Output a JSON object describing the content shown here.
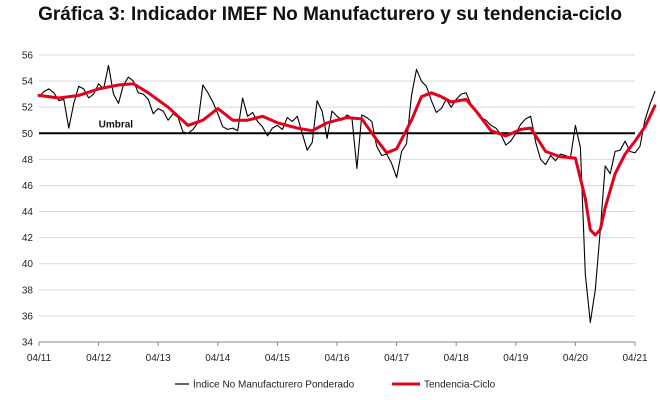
{
  "chart_data": {
    "type": "line",
    "title": "Gráfica 3: Indicador IMEF No Manufacturero y su tendencia-ciclo",
    "xlabel": "",
    "ylabel": "",
    "ylim": [
      34,
      56
    ],
    "yticks": [
      "34",
      "36",
      "38",
      "40",
      "42",
      "44",
      "46",
      "48",
      "50",
      "52",
      "54",
      "56"
    ],
    "xticks": [
      "04/11",
      "04/12",
      "04/13",
      "04/14",
      "04/15",
      "04/16",
      "04/17",
      "04/18",
      "04/19",
      "04/20",
      "04/21"
    ],
    "x_range": [
      0,
      120
    ],
    "grid": "horizontal",
    "threshold": {
      "label": "Umbral",
      "value": 50
    },
    "legend_position": "bottom",
    "series": [
      {
        "name": "Índice No Manufacturero Ponderado",
        "color": "#000000",
        "style": "thin",
        "points": [
          [
            0,
            52.8
          ],
          [
            1,
            53.2
          ],
          [
            2,
            53.4
          ],
          [
            3,
            53.1
          ],
          [
            4,
            52.5
          ],
          [
            5,
            52.6
          ],
          [
            6,
            50.4
          ],
          [
            7,
            52.3
          ],
          [
            8,
            53.6
          ],
          [
            9,
            53.4
          ],
          [
            10,
            52.7
          ],
          [
            11,
            53.0
          ],
          [
            12,
            53.8
          ],
          [
            13,
            53.4
          ],
          [
            14,
            55.2
          ],
          [
            15,
            53.0
          ],
          [
            16,
            52.3
          ],
          [
            17,
            53.7
          ],
          [
            18,
            54.3
          ],
          [
            19,
            54.0
          ],
          [
            20,
            53.1
          ],
          [
            21,
            53.0
          ],
          [
            22,
            52.6
          ],
          [
            23,
            51.5
          ],
          [
            24,
            51.9
          ],
          [
            25,
            51.7
          ],
          [
            26,
            51.0
          ],
          [
            27,
            51.5
          ],
          [
            28,
            51.2
          ],
          [
            29,
            50.1
          ],
          [
            30,
            50.0
          ],
          [
            31,
            50.3
          ],
          [
            32,
            50.8
          ],
          [
            33,
            53.7
          ],
          [
            34,
            53.1
          ],
          [
            35,
            52.4
          ],
          [
            36,
            51.5
          ],
          [
            37,
            50.5
          ],
          [
            38,
            50.3
          ],
          [
            39,
            50.4
          ],
          [
            40,
            50.2
          ],
          [
            41,
            52.7
          ],
          [
            42,
            51.3
          ],
          [
            43,
            51.6
          ],
          [
            44,
            50.9
          ],
          [
            45,
            50.5
          ],
          [
            46,
            49.8
          ],
          [
            47,
            50.4
          ],
          [
            48,
            50.6
          ],
          [
            49,
            50.3
          ],
          [
            50,
            51.2
          ],
          [
            51,
            50.9
          ],
          [
            52,
            51.3
          ],
          [
            53,
            50.0
          ],
          [
            54,
            48.7
          ],
          [
            55,
            49.3
          ],
          [
            56,
            52.5
          ],
          [
            57,
            51.7
          ],
          [
            58,
            49.6
          ],
          [
            59,
            51.7
          ],
          [
            60,
            51.3
          ],
          [
            61,
            51.0
          ],
          [
            62,
            51.4
          ],
          [
            63,
            51.2
          ],
          [
            64,
            47.3
          ],
          [
            65,
            51.4
          ],
          [
            66,
            51.2
          ],
          [
            67,
            50.9
          ],
          [
            68,
            49.0
          ],
          [
            69,
            48.3
          ],
          [
            70,
            48.4
          ],
          [
            71,
            47.7
          ],
          [
            72,
            46.6
          ],
          [
            73,
            48.6
          ],
          [
            74,
            49.2
          ],
          [
            75,
            52.9
          ],
          [
            76,
            54.9
          ],
          [
            77,
            54.0
          ],
          [
            78,
            53.6
          ],
          [
            79,
            52.5
          ],
          [
            80,
            51.6
          ],
          [
            81,
            51.9
          ],
          [
            82,
            52.6
          ],
          [
            83,
            52.0
          ],
          [
            84,
            52.6
          ],
          [
            85,
            53.0
          ],
          [
            86,
            53.1
          ],
          [
            87,
            52.2
          ],
          [
            88,
            51.8
          ],
          [
            89,
            51.2
          ],
          [
            90,
            51.0
          ],
          [
            91,
            50.6
          ],
          [
            92,
            50.4
          ],
          [
            93,
            49.9
          ],
          [
            94,
            49.1
          ],
          [
            95,
            49.4
          ],
          [
            96,
            50.0
          ],
          [
            97,
            50.7
          ],
          [
            98,
            51.1
          ],
          [
            99,
            51.3
          ],
          [
            100,
            49.3
          ],
          [
            101,
            48.0
          ],
          [
            102,
            47.6
          ],
          [
            103,
            48.3
          ],
          [
            104,
            47.9
          ],
          [
            105,
            48.4
          ],
          [
            106,
            48.3
          ],
          [
            107,
            48.1
          ],
          [
            108,
            50.6
          ],
          [
            109,
            48.9
          ],
          [
            110,
            39.2
          ],
          [
            111,
            35.5
          ],
          [
            112,
            38.0
          ],
          [
            113,
            42.5
          ],
          [
            114,
            47.5
          ],
          [
            115,
            46.9
          ],
          [
            116,
            48.6
          ],
          [
            117,
            48.7
          ],
          [
            118,
            49.4
          ],
          [
            119,
            48.6
          ],
          [
            120,
            48.5
          ],
          [
            121,
            49.0
          ],
          [
            122,
            51.0
          ],
          [
            123,
            52.2
          ],
          [
            124,
            53.2
          ]
        ]
      },
      {
        "name": "Tendencia-Ciclo",
        "color": "#e3001b",
        "style": "thick",
        "points": [
          [
            0,
            52.9
          ],
          [
            4,
            52.7
          ],
          [
            8,
            52.9
          ],
          [
            12,
            53.4
          ],
          [
            16,
            53.7
          ],
          [
            19,
            53.8
          ],
          [
            22,
            53.1
          ],
          [
            26,
            52.0
          ],
          [
            30,
            50.6
          ],
          [
            33,
            51.0
          ],
          [
            36,
            51.9
          ],
          [
            39,
            51.0
          ],
          [
            42,
            51.0
          ],
          [
            45,
            51.3
          ],
          [
            48,
            50.8
          ],
          [
            52,
            50.4
          ],
          [
            55,
            50.2
          ],
          [
            58,
            50.8
          ],
          [
            62,
            51.2
          ],
          [
            65,
            51.1
          ],
          [
            68,
            49.5
          ],
          [
            70,
            48.5
          ],
          [
            72,
            48.8
          ],
          [
            75,
            51.0
          ],
          [
            77,
            52.8
          ],
          [
            79,
            53.1
          ],
          [
            81,
            52.8
          ],
          [
            83,
            52.4
          ],
          [
            86,
            52.6
          ],
          [
            88,
            51.7
          ],
          [
            91,
            50.2
          ],
          [
            94,
            49.8
          ],
          [
            97,
            50.3
          ],
          [
            99,
            50.4
          ],
          [
            102,
            48.6
          ],
          [
            105,
            48.2
          ],
          [
            108,
            48.1
          ],
          [
            110,
            45.0
          ],
          [
            111,
            42.6
          ],
          [
            112,
            42.2
          ],
          [
            113,
            42.6
          ],
          [
            114,
            44.3
          ],
          [
            116,
            46.9
          ],
          [
            118,
            48.4
          ],
          [
            120,
            49.4
          ],
          [
            122,
            50.5
          ],
          [
            124,
            52.1
          ]
        ]
      }
    ]
  }
}
